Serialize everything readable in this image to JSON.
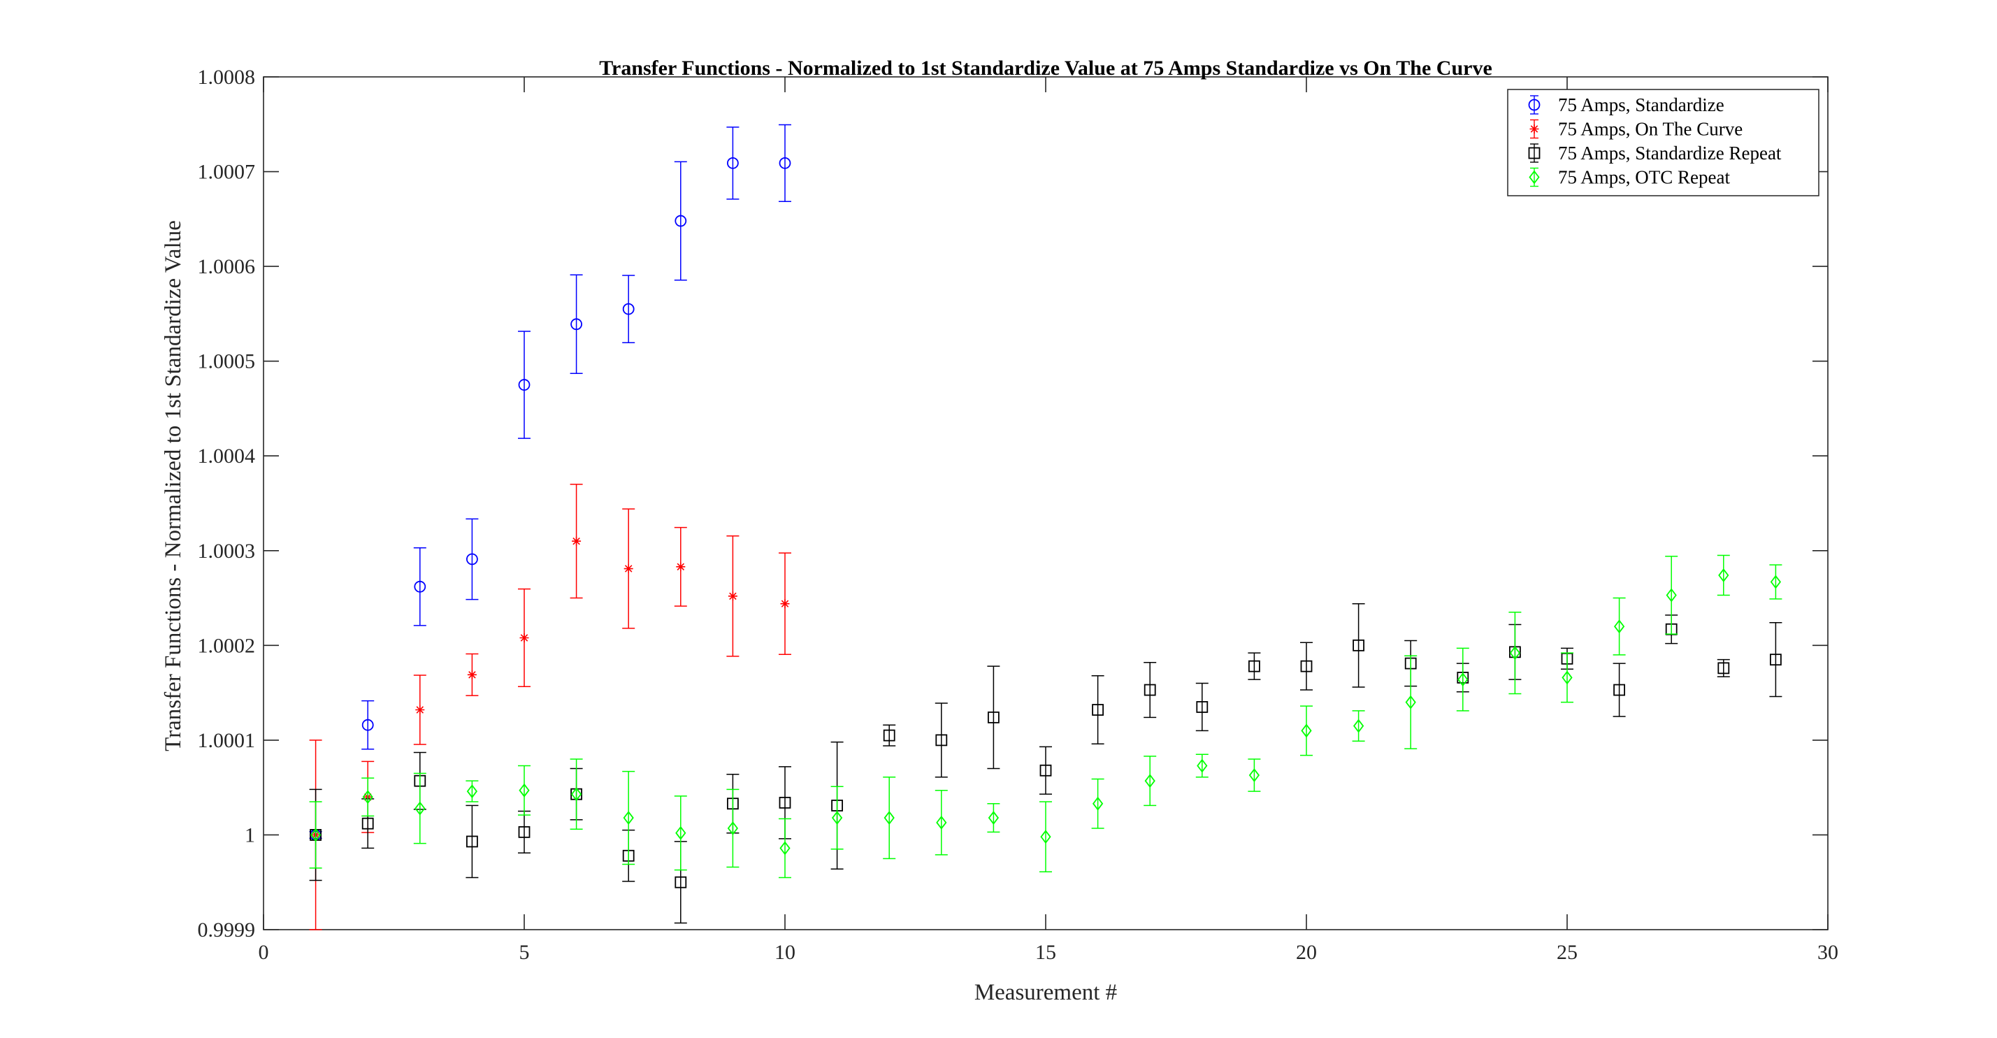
{
  "chart_data": {
    "type": "scatter",
    "title": "Transfer Functions - Normalized to 1st Standardize Value at 75 Amps Standardize vs On The Curve",
    "xlabel": "Measurement #",
    "ylabel": "Transfer Functions - Normalized to 1st Standardize Value",
    "xlim": [
      0,
      30
    ],
    "ylim": [
      0.9999,
      1.0008
    ],
    "xticks": [
      0,
      5,
      10,
      15,
      20,
      25,
      30
    ],
    "xtick_labels": [
      "0",
      "5",
      "10",
      "15",
      "20",
      "25",
      "30"
    ],
    "yticks": [
      0.9999,
      1.0,
      1.0001,
      1.0002,
      1.0003,
      1.0004,
      1.0005,
      1.0006,
      1.0007,
      1.0008
    ],
    "ytick_labels": [
      "0.9999",
      "1",
      "1.0001",
      "1.0002",
      "1.0003",
      "1.0004",
      "1.0005",
      "1.0006",
      "1.0007",
      "1.0008"
    ],
    "grid": false,
    "legend_position": "top-right",
    "series": [
      {
        "name": "75 Amps, Standardize",
        "color": "#0000ff",
        "marker": "circle",
        "x": [
          1,
          2,
          3,
          4,
          5,
          6,
          7,
          8,
          9,
          10
        ],
        "y": [
          1.0,
          1.000116,
          1.000262,
          1.000291,
          1.000475,
          1.000539,
          1.000555,
          1.000648,
          1.000709,
          1.000709
        ],
        "err": [
          3.5e-06,
          2.55e-05,
          4.1e-05,
          4.25e-05,
          5.65e-05,
          5.2e-05,
          3.55e-05,
          6.25e-05,
          3.8e-05,
          4.05e-05
        ]
      },
      {
        "name": "75 Amps, On The Curve",
        "color": "#ff0000",
        "marker": "asterisk",
        "x": [
          1,
          2,
          3,
          4,
          5,
          6,
          7,
          8,
          9,
          10
        ],
        "y": [
          1.0,
          1.00004,
          1.000132,
          1.000169,
          1.000208,
          1.00031,
          1.000281,
          1.000283,
          1.000252,
          1.000244
        ],
        "err": [
          0.0001,
          3.75e-05,
          3.65e-05,
          2.2e-05,
          5.15e-05,
          6e-05,
          6.3e-05,
          4.15e-05,
          6.35e-05,
          5.35e-05
        ]
      },
      {
        "name": "75 Amps, Standardize Repeat",
        "color": "#000000",
        "marker": "square",
        "x": [
          1,
          2,
          3,
          4,
          5,
          6,
          7,
          8,
          9,
          10,
          11,
          12,
          13,
          14,
          15,
          16,
          17,
          18,
          19,
          20,
          21,
          22,
          23,
          24,
          25,
          26,
          27,
          28,
          29
        ],
        "y": [
          1.0,
          1.000012,
          1.000057,
          0.999993,
          1.000003,
          1.000043,
          0.999978,
          0.99995,
          1.000033,
          1.000034,
          1.000031,
          1.000105,
          1.0001,
          1.000124,
          1.000068,
          1.000132,
          1.000153,
          1.000135,
          1.000178,
          1.000178,
          1.0002,
          1.000181,
          1.000166,
          1.000193,
          1.000186,
          1.000153,
          1.000217,
          1.000176,
          1.000185
        ],
        "err": [
          4.8e-05,
          2.6e-05,
          3e-05,
          3.8e-05,
          2.2e-05,
          2.7e-05,
          2.7e-05,
          4.3e-05,
          3.1e-05,
          3.8e-05,
          6.7e-05,
          1.1e-05,
          3.9e-05,
          5.4e-05,
          2.5e-05,
          3.6e-05,
          2.9e-05,
          2.5e-05,
          1.4e-05,
          2.5e-05,
          4.4e-05,
          2.4e-05,
          1.5e-05,
          2.9e-05,
          1.1e-05,
          2.8e-05,
          1.5e-05,
          9e-06,
          3.9e-05
        ]
      },
      {
        "name": "75 Amps, OTC Repeat",
        "color": "#00ff00",
        "marker": "diamond",
        "x": [
          1,
          2,
          3,
          4,
          5,
          6,
          7,
          8,
          9,
          10,
          11,
          12,
          13,
          14,
          15,
          16,
          17,
          18,
          19,
          20,
          21,
          22,
          23,
          24,
          25,
          26,
          27,
          28,
          29
        ],
        "y": [
          1.0,
          1.00004,
          1.000028,
          1.000046,
          1.000047,
          1.000043,
          1.000018,
          1.000002,
          1.000007,
          0.999986,
          1.000018,
          1.000018,
          1.000013,
          1.000018,
          0.999998,
          1.000033,
          1.000057,
          1.000073,
          1.000063,
          1.00011,
          1.000115,
          1.00014,
          1.000164,
          1.000192,
          1.000166,
          1.00022,
          1.000253,
          1.000274,
          1.000267
        ],
        "err": [
          3.5e-05,
          2e-05,
          3.7e-05,
          1.1e-05,
          2.6e-05,
          3.7e-05,
          4.9e-05,
          3.9e-05,
          4.1e-05,
          3.1e-05,
          3.3e-05,
          4.3e-05,
          3.4e-05,
          1.5e-05,
          3.7e-05,
          2.6e-05,
          2.6e-05,
          1.2e-05,
          1.7e-05,
          2.6e-05,
          1.6e-05,
          4.9e-05,
          3.3e-05,
          4.3e-05,
          2.6e-05,
          3e-05,
          4.1e-05,
          2.1e-05,
          1.8e-05
        ]
      }
    ]
  }
}
